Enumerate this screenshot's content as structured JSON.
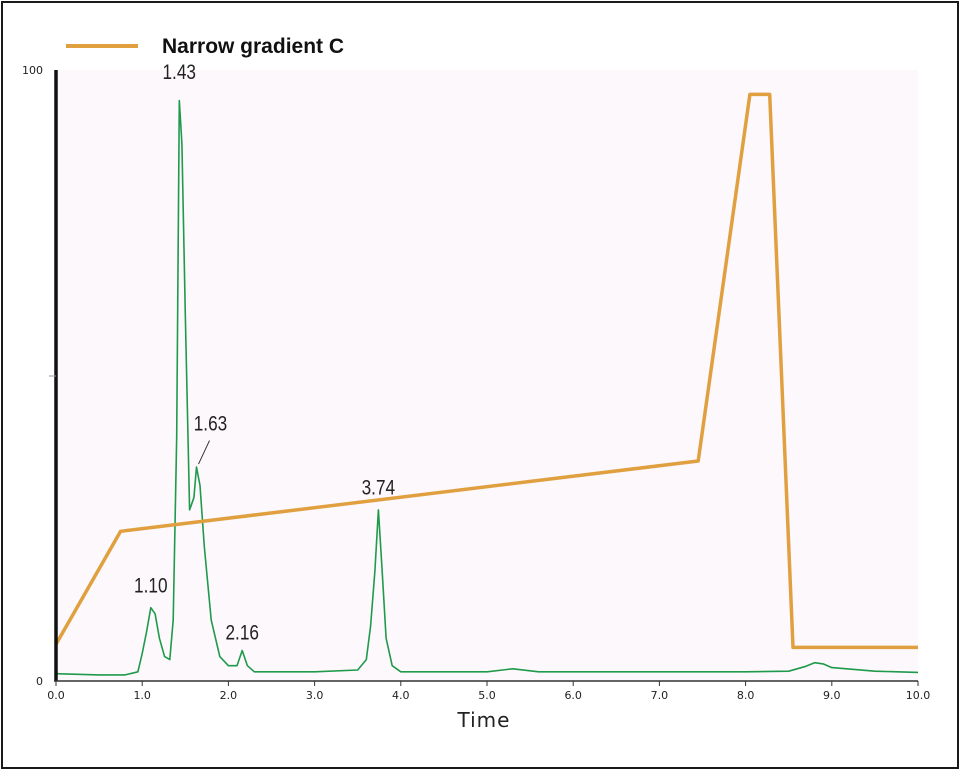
{
  "colors": {
    "trace": "#1f9a4a",
    "gradient": "#e0a040",
    "plot_bg": "#fcf8fc",
    "axis": "#111111"
  },
  "legend": {
    "label": "Narrow gradient C",
    "position": "top-left"
  },
  "chart_data": {
    "type": "line",
    "title": "",
    "xlabel": "Time",
    "ylabel": "",
    "xlim": [
      0.0,
      10.0
    ],
    "ylim": [
      0,
      100
    ],
    "x_ticks": [
      "0.0",
      "1.0",
      "2.0",
      "3.0",
      "4.0",
      "5.0",
      "6.0",
      "7.0",
      "8.0",
      "9.0",
      "10.0"
    ],
    "y_ticks": [
      "0",
      "100"
    ],
    "grid": false,
    "series": [
      {
        "name": "",
        "kind": "chromatogram",
        "color": "#1f9a4a",
        "x": [
          0.0,
          0.5,
          0.8,
          0.95,
          1.0,
          1.05,
          1.1,
          1.15,
          1.2,
          1.26,
          1.32,
          1.36,
          1.4,
          1.43,
          1.46,
          1.5,
          1.55,
          1.6,
          1.63,
          1.67,
          1.72,
          1.8,
          1.9,
          2.0,
          2.1,
          2.16,
          2.22,
          2.3,
          2.5,
          3.0,
          3.5,
          3.6,
          3.65,
          3.7,
          3.74,
          3.78,
          3.83,
          3.9,
          4.0,
          4.5,
          5.0,
          5.3,
          5.6,
          6.0,
          7.0,
          8.0,
          8.5,
          8.7,
          8.8,
          8.9,
          9.0,
          9.5,
          10.0
        ],
        "y": [
          1.2,
          1.0,
          1.0,
          1.5,
          4.5,
          8.0,
          12.0,
          11.0,
          7.0,
          4.0,
          3.5,
          10.0,
          40.0,
          95.0,
          88.0,
          60.0,
          28.0,
          30.0,
          35.0,
          32.0,
          22.0,
          10.0,
          4.0,
          2.5,
          2.5,
          5.0,
          2.5,
          1.5,
          1.5,
          1.5,
          1.8,
          3.5,
          9.0,
          18.0,
          28.0,
          19.0,
          7.0,
          2.5,
          1.5,
          1.5,
          1.5,
          2.0,
          1.5,
          1.5,
          1.5,
          1.5,
          1.6,
          2.4,
          3.0,
          2.8,
          2.2,
          1.6,
          1.4
        ]
      },
      {
        "name": "Narrow gradient C",
        "kind": "gradient",
        "color": "#e0a040",
        "x": [
          0.0,
          0.75,
          7.45,
          8.05,
          8.28,
          8.55,
          10.0
        ],
        "y": [
          6.0,
          24.5,
          36.0,
          96.0,
          96.0,
          5.5,
          5.5
        ]
      }
    ],
    "annotations": [
      {
        "text": "1.43",
        "x": 1.43,
        "y": 98.5
      },
      {
        "text": "1.63",
        "x": 1.63,
        "y": 41.0
      },
      {
        "text": "1.10",
        "x": 1.1,
        "y": 14.5
      },
      {
        "text": "2.16",
        "x": 2.16,
        "y": 6.8
      },
      {
        "text": "3.74",
        "x": 3.74,
        "y": 30.5
      }
    ]
  }
}
